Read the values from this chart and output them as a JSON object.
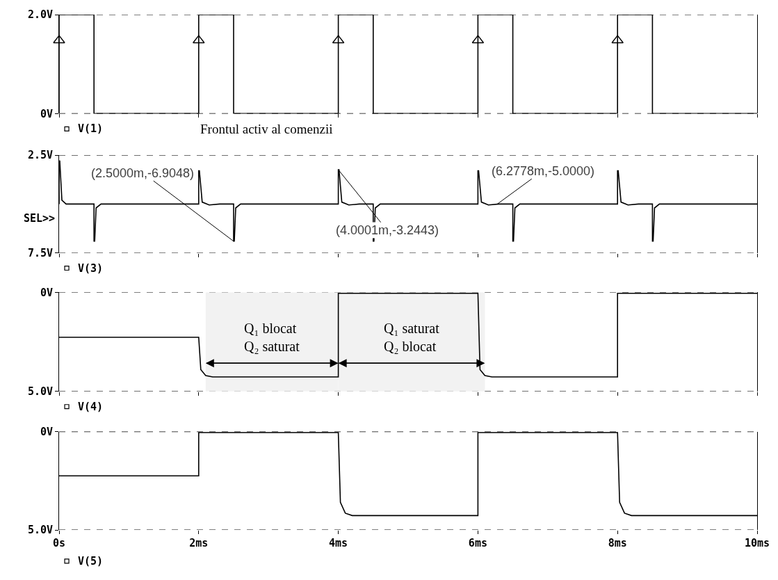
{
  "chart_data": [
    {
      "type": "line",
      "xlim": [
        0,
        10
      ],
      "xticks": [
        {
          "value": 0,
          "label": null
        },
        {
          "value": 2,
          "label": null
        },
        {
          "value": 4,
          "label": null
        },
        {
          "value": 6,
          "label": null
        },
        {
          "value": 8,
          "label": null
        },
        {
          "value": 10,
          "label": null
        }
      ],
      "ylim": [
        0,
        2
      ],
      "yticks": [
        {
          "value": 0,
          "label": "0V"
        },
        {
          "value": 2,
          "label": "2.0V"
        }
      ],
      "grid": "y",
      "tick_labels": "y",
      "legend": "bottom",
      "annotations": [
        "Frontul activ al comenzii"
      ],
      "series": [
        {
          "name": "V(1)",
          "color": "#000000",
          "x": [
            0,
            0,
            0.5,
            0.5,
            2,
            2,
            2.5,
            2.5,
            4,
            4,
            4.5,
            4.5,
            6,
            6,
            6.5,
            6.5,
            8,
            8,
            8.5,
            8.5,
            10
          ],
          "values": [
            0,
            2,
            2,
            0,
            0,
            2,
            2,
            0,
            0,
            2,
            2,
            0,
            0,
            2,
            2,
            0,
            0,
            2,
            2,
            0,
            0
          ]
        },
        {
          "type": "scatter",
          "marker": "triangle",
          "color": "#000000",
          "x": [
            0,
            2,
            4,
            6,
            8
          ],
          "values": [
            1.48,
            1.48,
            1.48,
            1.48,
            1.48
          ]
        }
      ]
    },
    {
      "type": "line",
      "xlim": [
        0,
        10
      ],
      "xticks": [
        {
          "value": 0,
          "label": null
        },
        {
          "value": 2,
          "label": null
        },
        {
          "value": 4,
          "label": null
        },
        {
          "value": 6,
          "label": null
        },
        {
          "value": 8,
          "label": null
        },
        {
          "value": 10,
          "label": null
        }
      ],
      "ylim": [
        -7.5,
        -2.5
      ],
      "yticks": [
        {
          "value": -7.5,
          "label": "7.5V"
        },
        {
          "value": -2.5,
          "label": "2.5V"
        }
      ],
      "grid": "y",
      "tick_labels": "y",
      "legend": "bottom",
      "annotations": [
        {
          "text": "(2.5000m,-6.9048)",
          "x": 2.5,
          "y": -6.9048
        },
        {
          "text": "(4.0001m,-3.2443)",
          "x": 4.0001,
          "y": -3.2443
        },
        {
          "text": "(6.2778m,-5.0000)",
          "x": 6.2778,
          "y": -5.0
        },
        "SEL>>"
      ],
      "series": [
        {
          "name": "V(3)",
          "color": "#000000",
          "x": [
            0,
            0,
            0.01,
            0.04,
            0.1,
            0.5,
            0.5,
            0.51,
            0.53,
            0.6,
            2,
            2,
            2.01,
            2.05,
            2.15,
            2.3,
            2.5,
            2.5,
            2.51,
            2.53,
            2.6,
            4,
            4,
            4.01,
            4.05,
            4.15,
            4.3,
            4.5,
            4.5,
            4.51,
            4.53,
            4.6,
            6,
            6,
            6.01,
            6.05,
            6.15,
            6.3,
            6.5,
            6.5,
            6.51,
            6.53,
            6.6,
            8,
            8,
            8.01,
            8.05,
            8.15,
            8.3,
            8.5,
            8.5,
            8.51,
            8.53,
            8.6,
            10
          ],
          "values": [
            -5,
            -2.8,
            -2.8,
            -4.8,
            -5,
            -5,
            -6.9,
            -6.9,
            -5.2,
            -5,
            -5,
            -3.3,
            -3.3,
            -4.9,
            -5.05,
            -5,
            -5,
            -6.9,
            -6.9,
            -5.2,
            -5,
            -5,
            -3.24,
            -3.24,
            -4.9,
            -5.05,
            -5,
            -5,
            -6.9,
            -6.9,
            -5.2,
            -5,
            -5,
            -3.3,
            -3.3,
            -4.9,
            -5.05,
            -5,
            -5,
            -6.9,
            -6.9,
            -5.2,
            -5,
            -5,
            -3.3,
            -3.3,
            -4.9,
            -5.05,
            -5,
            -5,
            -6.9,
            -6.9,
            -5.2,
            -5,
            -5
          ]
        }
      ]
    },
    {
      "type": "line",
      "xlim": [
        0,
        10
      ],
      "xticks": [
        {
          "value": 0,
          "label": null
        },
        {
          "value": 2,
          "label": null
        },
        {
          "value": 4,
          "label": null
        },
        {
          "value": 6,
          "label": null
        },
        {
          "value": 8,
          "label": null
        },
        {
          "value": 10,
          "label": null
        }
      ],
      "ylim": [
        -5,
        0
      ],
      "yticks": [
        {
          "value": -5,
          "label": "5.0V"
        },
        {
          "value": 0,
          "label": "0V"
        }
      ],
      "grid": "y",
      "tick_labels": "y",
      "legend": "bottom",
      "bands": [
        {
          "axis": "x",
          "from": 2.1,
          "to": 4.0,
          "label": "Q₁ blocat\nQ₂ saturat",
          "color": "#f2f2f2"
        },
        {
          "axis": "x",
          "from": 4.0,
          "to": 6.1,
          "label": "Q₁ saturat\nQ₂ blocat",
          "color": "#f2f2f2"
        }
      ],
      "series": [
        {
          "name": "V(4)",
          "color": "#000000",
          "x": [
            0,
            2,
            2.03,
            2.1,
            2.2,
            4,
            4,
            6,
            6.03,
            6.1,
            6.2,
            8,
            8,
            10
          ],
          "values": [
            -2.27,
            -2.27,
            -3.9,
            -4.2,
            -4.27,
            -4.27,
            -0.05,
            -0.05,
            -3.9,
            -4.2,
            -4.27,
            -4.27,
            -0.05,
            -0.05
          ]
        }
      ]
    },
    {
      "type": "line",
      "xlim": [
        0,
        10
      ],
      "xticks": [
        {
          "value": 0,
          "label": "0s"
        },
        {
          "value": 2,
          "label": "2ms"
        },
        {
          "value": 4,
          "label": "4ms"
        },
        {
          "value": 6,
          "label": "6ms"
        },
        {
          "value": 8,
          "label": "8ms"
        },
        {
          "value": 10,
          "label": "10ms"
        }
      ],
      "ylim": [
        -5,
        0
      ],
      "yticks": [
        {
          "value": -5,
          "label": "5.0V"
        },
        {
          "value": 0,
          "label": "0V"
        }
      ],
      "grid": "y",
      "legend": "bottom",
      "series": [
        {
          "name": "V(5)",
          "color": "#000000",
          "x": [
            0,
            2,
            2,
            4,
            4.03,
            4.1,
            4.2,
            6,
            6,
            8,
            8.03,
            8.1,
            8.2,
            10
          ],
          "values": [
            -2.25,
            -2.25,
            -0.05,
            -0.05,
            -3.6,
            -4.15,
            -4.27,
            -4.27,
            -0.05,
            -0.05,
            -3.6,
            -4.15,
            -4.27,
            -4.27
          ]
        }
      ]
    }
  ]
}
